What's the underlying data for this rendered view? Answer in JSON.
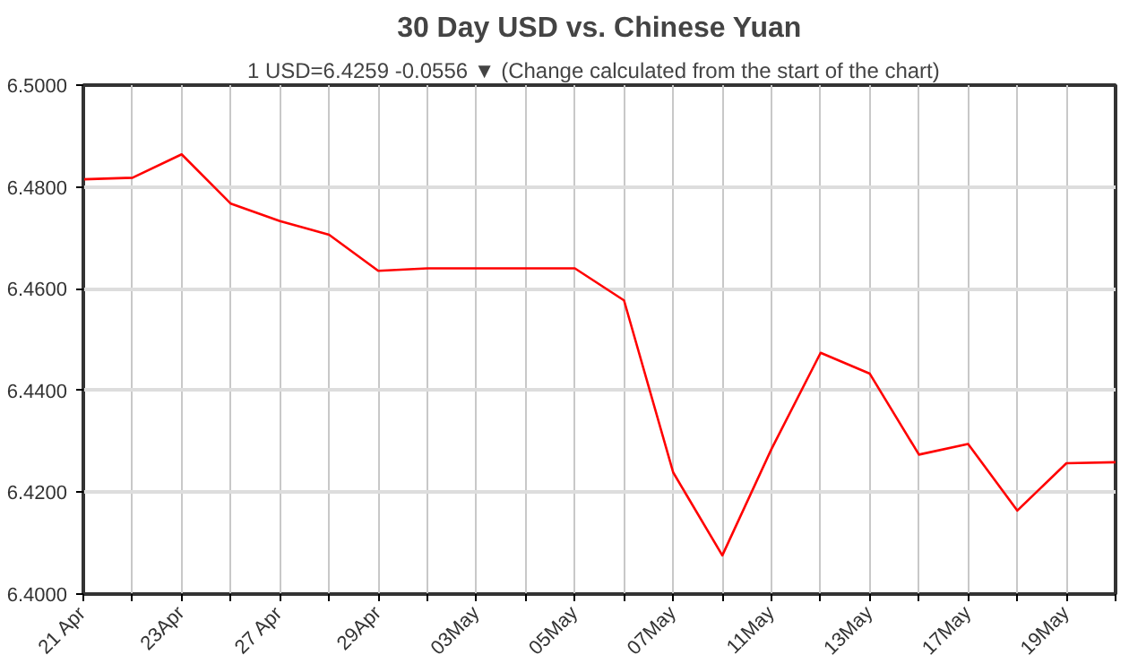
{
  "chart_data": {
    "type": "line",
    "title": "30 Day USD vs. Chinese Yuan",
    "subtitle": "1 USD=6.4259  -0.0556 ▼  (Change calculated from the start of the chart)",
    "categories": [
      "21 Apr",
      null,
      "23Apr",
      null,
      "27 Apr",
      null,
      "29Apr",
      null,
      "03May",
      null,
      "05May",
      null,
      "07May",
      null,
      "11May",
      null,
      "13May",
      null,
      "17May",
      null,
      "19May",
      null
    ],
    "series": [
      {
        "color": "#ff0000",
        "values": [
          6.4815,
          6.4818,
          6.4864,
          6.4767,
          6.4733,
          6.4706,
          6.4635,
          6.464,
          6.464,
          6.464,
          6.464,
          6.4577,
          6.4239,
          6.4076,
          6.4285,
          6.4474,
          6.4433,
          6.4274,
          6.4295,
          6.4164,
          6.4257,
          6.4259
        ]
      }
    ],
    "ylim": [
      6.4,
      6.5
    ],
    "yticks": [
      {
        "value": 6.4,
        "label": "6.4000"
      },
      {
        "value": 6.42,
        "label": "6.4200"
      },
      {
        "value": 6.44,
        "label": "6.4400"
      },
      {
        "value": 6.46,
        "label": "6.4600"
      },
      {
        "value": 6.48,
        "label": "6.4800"
      },
      {
        "value": 6.5,
        "label": "6.5000"
      }
    ],
    "grid": true,
    "marker": "none",
    "line_style": "solid"
  }
}
